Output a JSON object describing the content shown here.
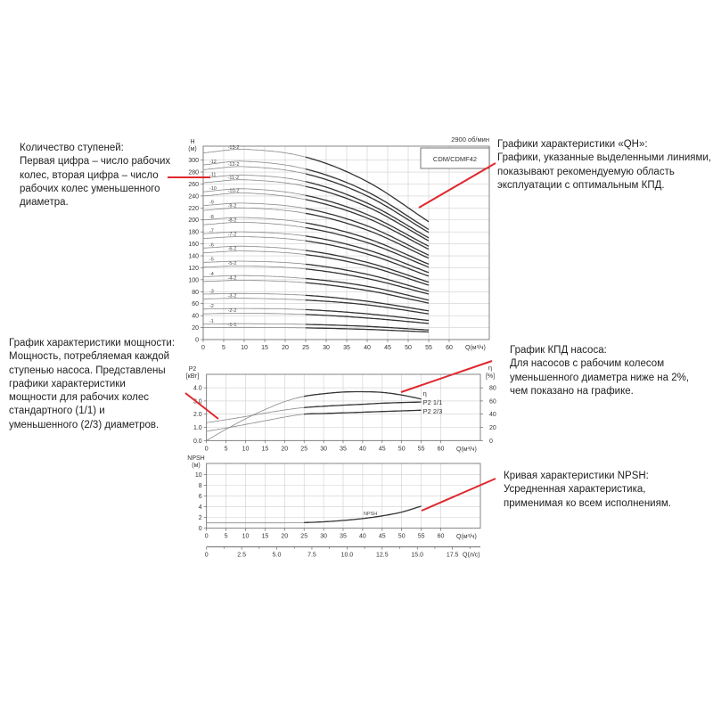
{
  "annotations": {
    "stages": {
      "lines": [
        "Количество ступеней:",
        "Первая цифра – число рабочих",
        "колес, вторая цифра – число",
        "рабочих колес уменьшенного",
        "диаметра."
      ]
    },
    "qh": {
      "lines": [
        "Графики характеристики «QH»:",
        "Графики, указанные выделенными линиями,",
        "показывают рекомендуемую область",
        "эксплуатации с оптимальным КПД."
      ]
    },
    "power": {
      "lines": [
        "График характеристики мощности:",
        "Мощность, потребляемая каждой",
        "ступенью насоса. Представлены",
        "графики характеристики",
        "мощности для рабочих колес",
        "стандартного (1/1) и",
        "уменьшенного (2/3) диаметров."
      ]
    },
    "efficiency": {
      "lines": [
        "График КПД насоса:",
        "Для насосов с рабочим колесом",
        "уменьшенного диаметра ниже на 2%,",
        "чем показано на графике."
      ]
    },
    "npsh": {
      "lines": [
        "Кривая характеристики NPSH:",
        "Усредненная характеристика,",
        "применимая ко всем исполнениям."
      ]
    },
    "pointer_color": "#e0282e"
  },
  "header": {
    "speed": "2900 об/мин",
    "model": "CDM/CDMF42"
  },
  "chart_data": [
    {
      "type": "line",
      "title": "",
      "xlabel": "Q(м³/ч)",
      "ylabel": "H",
      "yunit": "(м)",
      "xlim": [
        0,
        69
      ],
      "ylim": [
        0,
        320
      ],
      "xticks": [
        0,
        5,
        10,
        15,
        20,
        25,
        30,
        35,
        40,
        45,
        50,
        55,
        60
      ],
      "yticks": [
        0,
        20,
        40,
        60,
        80,
        100,
        120,
        140,
        160,
        180,
        200,
        220,
        240,
        260,
        280,
        300
      ],
      "grid": true,
      "recommended_range_q": [
        25,
        55
      ],
      "x": [
        0,
        10,
        25,
        40,
        55
      ],
      "series": [
        {
          "name": "-13-2",
          "values": [
            312,
            318,
            305,
            264,
            197
          ]
        },
        {
          "name": "-12",
          "values": [
            292,
            298,
            285,
            247,
            184
          ]
        },
        {
          "name": "-12-2",
          "values": [
            284,
            289,
            277,
            240,
            179
          ]
        },
        {
          "name": "-11",
          "values": [
            270,
            275,
            264,
            228,
            170
          ]
        },
        {
          "name": "-11-2",
          "values": [
            262,
            267,
            256,
            222,
            165
          ]
        },
        {
          "name": "-10",
          "values": [
            247,
            252,
            241,
            209,
            156
          ]
        },
        {
          "name": "-10-2",
          "values": [
            240,
            245,
            234,
            203,
            151
          ]
        },
        {
          "name": "-9",
          "values": [
            224,
            228,
            219,
            190,
            141
          ]
        },
        {
          "name": "-9-2",
          "values": [
            216,
            220,
            211,
            183,
            136
          ]
        },
        {
          "name": "-8",
          "values": [
            200,
            204,
            195,
            169,
            126
          ]
        },
        {
          "name": "-8-2",
          "values": [
            192,
            196,
            187,
            162,
            121
          ]
        },
        {
          "name": "-7",
          "values": [
            177,
            180,
            173,
            150,
            112
          ]
        },
        {
          "name": "-7-2",
          "values": [
            169,
            172,
            165,
            143,
            106
          ]
        },
        {
          "name": "-6",
          "values": [
            153,
            156,
            149,
            129,
            96
          ]
        },
        {
          "name": "-6-2",
          "values": [
            145,
            148,
            142,
            123,
            91
          ]
        },
        {
          "name": "-5",
          "values": [
            129,
            131,
            126,
            109,
            81
          ]
        },
        {
          "name": "-5-2",
          "values": [
            121,
            123,
            118,
            102,
            76
          ]
        },
        {
          "name": "-4",
          "values": [
            105,
            107,
            102,
            89,
            66
          ]
        },
        {
          "name": "-4-2",
          "values": [
            97,
            99,
            95,
            82,
            61
          ]
        },
        {
          "name": "-3",
          "values": [
            76,
            77,
            74,
            64,
            48
          ]
        },
        {
          "name": "-3-2",
          "values": [
            68,
            69,
            66,
            58,
            43
          ]
        },
        {
          "name": "-2",
          "values": [
            51,
            52,
            50,
            43,
            32
          ]
        },
        {
          "name": "-2-2",
          "values": [
            43,
            44,
            42,
            36,
            27
          ]
        },
        {
          "name": "-1",
          "values": [
            26,
            26.5,
            25.4,
            22,
            16
          ]
        },
        {
          "name": "-1-1",
          "values": [
            20,
            20.4,
            19.5,
            17,
            12.6
          ]
        }
      ]
    },
    {
      "type": "line",
      "title": "",
      "xlabel": "Q(м³/ч)",
      "ylabel": "P2",
      "yunit": "[кВт]",
      "y2label": "η",
      "y2unit": "[%]",
      "xlim": [
        0,
        70
      ],
      "ylim": [
        0,
        5.0
      ],
      "y2lim": [
        0,
        100
      ],
      "xticks": [
        0,
        5,
        10,
        15,
        20,
        25,
        30,
        35,
        40,
        45,
        50,
        55,
        60
      ],
      "yticks": [
        "0.0",
        "1.0",
        "2.0",
        "3.0",
        "4.0"
      ],
      "y2ticks": [
        0,
        20,
        40,
        60,
        80
      ],
      "grid": true,
      "x": [
        0,
        5,
        10,
        15,
        20,
        25,
        30,
        35,
        40,
        45,
        50,
        55
      ],
      "series": [
        {
          "name": "η",
          "axis": "right",
          "values": [
            0,
            17,
            33,
            47,
            59,
            67,
            71,
            73.5,
            74,
            73,
            69,
            63
          ]
        },
        {
          "name": "P2 1/1",
          "axis": "left",
          "values": [
            1.35,
            1.58,
            1.82,
            2.08,
            2.32,
            2.5,
            2.6,
            2.68,
            2.75,
            2.83,
            2.88,
            2.92
          ]
        },
        {
          "name": "P2 2/3",
          "axis": "left",
          "values": [
            0.7,
            0.95,
            1.22,
            1.5,
            1.78,
            2.0,
            2.05,
            2.1,
            2.15,
            2.2,
            2.25,
            2.3
          ]
        }
      ]
    },
    {
      "type": "line",
      "title": "",
      "xlabel": "Q(м³/ч)",
      "ylabel": "NPSH",
      "yunit": "(м)",
      "xlim": [
        0,
        70
      ],
      "ylim": [
        0,
        12
      ],
      "xticks": [
        0,
        5,
        10,
        15,
        20,
        25,
        30,
        35,
        40,
        45,
        50,
        55,
        60
      ],
      "yticks": [
        0,
        2,
        4,
        6,
        8,
        10
      ],
      "grid": true,
      "x2label": "Q(л/с)",
      "x2ticks": [
        "0",
        "2.5",
        "5.0",
        "7.5",
        "10.0",
        "12.5",
        "15.0",
        "17.5"
      ],
      "x": [
        0,
        10,
        20,
        25,
        30,
        35,
        40,
        45,
        50,
        55
      ],
      "series": [
        {
          "name": "NPSH",
          "values": [
            1.0,
            1.0,
            1.0,
            1.05,
            1.2,
            1.45,
            1.8,
            2.3,
            3.0,
            4.1
          ]
        }
      ]
    }
  ]
}
